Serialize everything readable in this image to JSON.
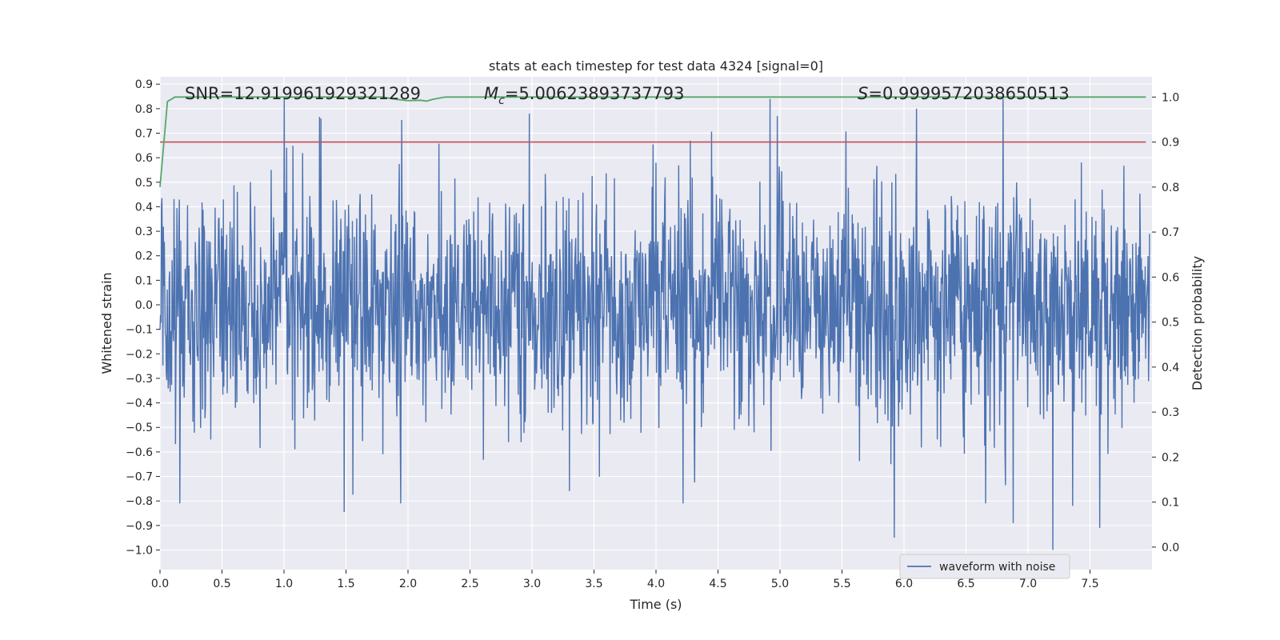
{
  "chart_data": {
    "type": "line",
    "title": "stats at each timestep for test data 4324 [signal=0]",
    "xlabel": "Time (s)",
    "ylabel": "Whitened strain",
    "ylabel_right": "Detection probability",
    "xlim": [
      0.0,
      8.0
    ],
    "ylim_left": [
      -1.08,
      0.93
    ],
    "ylim_right": [
      -0.05,
      1.045
    ],
    "grid": true,
    "x_ticks": [
      "0.0",
      "0.5",
      "1.0",
      "1.5",
      "2.0",
      "2.5",
      "3.0",
      "3.5",
      "4.0",
      "4.5",
      "5.0",
      "5.5",
      "6.0",
      "6.5",
      "7.0",
      "7.5"
    ],
    "y_ticks_left": [
      "0.9",
      "0.8",
      "0.7",
      "0.6",
      "0.5",
      "0.4",
      "0.3",
      "0.2",
      "0.1",
      "0.0",
      "−0.1",
      "−0.2",
      "−0.3",
      "−0.4",
      "−0.5",
      "−0.6",
      "−0.7",
      "−0.8",
      "−0.9",
      "−1.0"
    ],
    "y_ticks_right": [
      "1.0",
      "0.9",
      "0.8",
      "0.7",
      "0.6",
      "0.5",
      "0.4",
      "0.3",
      "0.2",
      "0.1",
      "0.0"
    ],
    "annotations": {
      "snr": "SNR=12.919961929321289",
      "mc_symbol": "M",
      "mc_sub": "c",
      "mc_value": "=5.00623893737793",
      "s_symbol": "S",
      "s_value": "=0.9999572038650513"
    },
    "legend": {
      "label": "waveform with noise",
      "position": "lower-right"
    },
    "series": [
      {
        "name": "waveform with noise",
        "axis": "left",
        "color": "#4c72b0",
        "kind": "noise",
        "approx_samples": 2048,
        "range": [
          -1.0,
          0.85
        ],
        "peaks": [
          {
            "x": 1.0,
            "y": 0.85
          },
          {
            "x": 4.92,
            "y": 0.84
          },
          {
            "x": 6.8,
            "y": 0.84
          },
          {
            "x": 7.2,
            "y": -1.0
          },
          {
            "x": 5.92,
            "y": -0.95
          },
          {
            "x": 6.88,
            "y": -0.89
          },
          {
            "x": 7.58,
            "y": -0.91
          },
          {
            "x": 0.16,
            "y": -0.81
          },
          {
            "x": 1.94,
            "y": -0.81
          },
          {
            "x": 4.22,
            "y": -0.81
          },
          {
            "x": 6.66,
            "y": -0.81
          },
          {
            "x": 7.36,
            "y": -0.82
          },
          {
            "x": 3.3,
            "y": -0.76
          },
          {
            "x": 1.3,
            "y": 0.76
          },
          {
            "x": 2.98,
            "y": 0.78
          },
          {
            "x": 6.1,
            "y": 0.8
          },
          {
            "x": 4.98,
            "y": 0.77
          }
        ]
      },
      {
        "name": "detection probability",
        "axis": "right",
        "color": "#55a868",
        "x": [
          0.0,
          0.06,
          0.12,
          0.5,
          1.0,
          1.5,
          1.8,
          1.9,
          2.0,
          2.1,
          2.15,
          2.2,
          2.3,
          3.0,
          4.0,
          5.0,
          6.0,
          7.0,
          7.95
        ],
        "y": [
          0.8,
          0.99,
          1.0,
          1.0,
          1.0,
          1.0,
          1.0,
          0.995,
          0.992,
          0.993,
          0.991,
          0.995,
          1.0,
          1.0,
          1.0,
          1.0,
          1.0,
          1.0,
          1.0
        ]
      },
      {
        "name": "threshold",
        "axis": "right",
        "color": "#c44e52",
        "x": [
          0.0,
          7.95
        ],
        "y": [
          0.9,
          0.9
        ]
      }
    ]
  }
}
